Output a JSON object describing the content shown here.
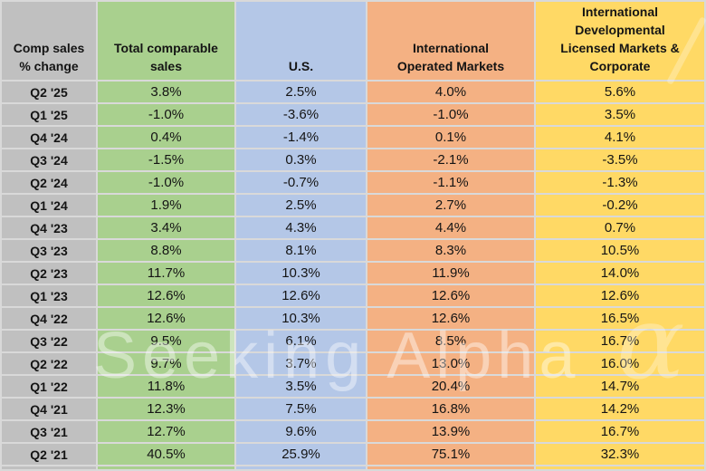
{
  "table": {
    "corner_label": "Comp sales\n% change",
    "columns": [
      {
        "key": "total",
        "label": "Total comparable\nsales",
        "color": "#a9d08e"
      },
      {
        "key": "us",
        "label": "U.S.",
        "color": "#b4c7e7"
      },
      {
        "key": "iom",
        "label": "International\nOperated Markets",
        "color": "#f4b183"
      },
      {
        "key": "idl",
        "label": "International\nDevelopmental\nLicensed Markets &\nCorporate",
        "color": "#ffd965"
      }
    ],
    "rows": [
      {
        "quarter": "Q2 '25",
        "total": "3.8%",
        "us": "2.5%",
        "iom": "4.0%",
        "idl": "5.6%"
      },
      {
        "quarter": "Q1 '25",
        "total": "-1.0%",
        "us": "-3.6%",
        "iom": "-1.0%",
        "idl": "3.5%"
      },
      {
        "quarter": "Q4 '24",
        "total": "0.4%",
        "us": "-1.4%",
        "iom": "0.1%",
        "idl": "4.1%"
      },
      {
        "quarter": "Q3 '24",
        "total": "-1.5%",
        "us": "0.3%",
        "iom": "-2.1%",
        "idl": "-3.5%"
      },
      {
        "quarter": "Q2 '24",
        "total": "-1.0%",
        "us": "-0.7%",
        "iom": "-1.1%",
        "idl": "-1.3%"
      },
      {
        "quarter": "Q1 '24",
        "total": "1.9%",
        "us": "2.5%",
        "iom": "2.7%",
        "idl": "-0.2%"
      },
      {
        "quarter": "Q4 '23",
        "total": "3.4%",
        "us": "4.3%",
        "iom": "4.4%",
        "idl": "0.7%"
      },
      {
        "quarter": "Q3 '23",
        "total": "8.8%",
        "us": "8.1%",
        "iom": "8.3%",
        "idl": "10.5%"
      },
      {
        "quarter": "Q2 '23",
        "total": "11.7%",
        "us": "10.3%",
        "iom": "11.9%",
        "idl": "14.0%"
      },
      {
        "quarter": "Q1 '23",
        "total": "12.6%",
        "us": "12.6%",
        "iom": "12.6%",
        "idl": "12.6%"
      },
      {
        "quarter": "Q4 '22",
        "total": "12.6%",
        "us": "10.3%",
        "iom": "12.6%",
        "idl": "16.5%"
      },
      {
        "quarter": "Q3 '22",
        "total": "9.5%",
        "us": "6.1%",
        "iom": "8.5%",
        "idl": "16.7%"
      },
      {
        "quarter": "Q2 '22",
        "total": "9.7%",
        "us": "3.7%",
        "iom": "13.0%",
        "idl": "16.0%"
      },
      {
        "quarter": "Q1 '22",
        "total": "11.8%",
        "us": "3.5%",
        "iom": "20.4%",
        "idl": "14.7%"
      },
      {
        "quarter": "Q4 '21",
        "total": "12.3%",
        "us": "7.5%",
        "iom": "16.8%",
        "idl": "14.2%"
      },
      {
        "quarter": "Q3 '21",
        "total": "12.7%",
        "us": "9.6%",
        "iom": "13.9%",
        "idl": "16.7%"
      },
      {
        "quarter": "Q2 '21",
        "total": "40.5%",
        "us": "25.9%",
        "iom": "75.1%",
        "idl": "32.3%"
      }
    ]
  },
  "watermark": {
    "text": "Seeking Alpha",
    "alpha_symbol": "α"
  },
  "colors": {
    "label_gray": "#c0c0c0",
    "total_green": "#a9d08e",
    "us_blue": "#b4c7e7",
    "iom_orange": "#f4b183",
    "idl_yellow": "#ffd965",
    "gridline": "#d9d9d9",
    "text": "#141414"
  }
}
